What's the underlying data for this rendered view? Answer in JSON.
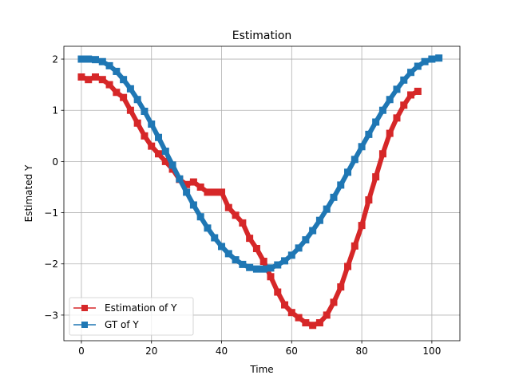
{
  "chart_data": {
    "type": "line",
    "title": "Estimation",
    "xlabel": "Time",
    "ylabel": "Estimated Y",
    "xlim": [
      -5,
      108
    ],
    "ylim": [
      -3.5,
      2.25
    ],
    "xticks": [
      0,
      20,
      40,
      60,
      80,
      100
    ],
    "yticks": [
      -3,
      -2,
      -1,
      0,
      1,
      2
    ],
    "xtick_labels": [
      "0",
      "20",
      "40",
      "60",
      "80",
      "100"
    ],
    "ytick_labels": [
      "−3",
      "−2",
      "−1",
      "0",
      "1",
      "2"
    ],
    "grid": true,
    "legend_position": "lower-left",
    "series": [
      {
        "name": "Estimation of Y",
        "color": "#d62728",
        "marker": "square",
        "x": [
          0,
          2,
          4,
          6,
          8,
          10,
          12,
          14,
          16,
          18,
          20,
          22,
          24,
          26,
          28,
          30,
          32,
          34,
          36,
          38,
          40,
          42,
          44,
          46,
          48,
          50,
          52,
          54,
          56,
          58,
          60,
          62,
          64,
          66,
          68,
          70,
          72,
          74,
          76,
          78,
          80,
          82,
          84,
          86,
          88,
          90,
          92,
          94,
          96
        ],
        "y": [
          1.65,
          1.6,
          1.65,
          1.6,
          1.5,
          1.35,
          1.25,
          1.0,
          0.75,
          0.5,
          0.3,
          0.15,
          0.0,
          -0.15,
          -0.35,
          -0.45,
          -0.4,
          -0.5,
          -0.6,
          -0.6,
          -0.6,
          -0.9,
          -1.05,
          -1.2,
          -1.5,
          -1.7,
          -1.95,
          -2.25,
          -2.55,
          -2.8,
          -2.95,
          -3.05,
          -3.15,
          -3.2,
          -3.15,
          -3.0,
          -2.75,
          -2.45,
          -2.05,
          -1.65,
          -1.25,
          -0.75,
          -0.3,
          0.15,
          0.55,
          0.85,
          1.1,
          1.3,
          1.37
        ]
      },
      {
        "name": "GT of Y",
        "color": "#1f77b4",
        "marker": "square",
        "x": [
          0,
          2,
          4,
          6,
          8,
          10,
          12,
          14,
          16,
          18,
          20,
          22,
          24,
          26,
          28,
          30,
          32,
          34,
          36,
          38,
          40,
          42,
          44,
          46,
          48,
          50,
          52,
          54,
          56,
          58,
          60,
          62,
          64,
          66,
          68,
          70,
          72,
          74,
          76,
          78,
          80,
          82,
          84,
          86,
          88,
          90,
          92,
          94,
          96,
          98,
          100,
          102
        ],
        "y": [
          2.0,
          2.0,
          1.99,
          1.95,
          1.87,
          1.76,
          1.6,
          1.42,
          1.21,
          0.98,
          0.73,
          0.47,
          0.2,
          -0.07,
          -0.34,
          -0.6,
          -0.85,
          -1.08,
          -1.3,
          -1.49,
          -1.66,
          -1.8,
          -1.92,
          -2.01,
          -2.07,
          -2.1,
          -2.1,
          -2.08,
          -2.02,
          -1.94,
          -1.83,
          -1.69,
          -1.53,
          -1.35,
          -1.15,
          -0.93,
          -0.7,
          -0.46,
          -0.21,
          0.04,
          0.29,
          0.53,
          0.77,
          1.0,
          1.21,
          1.41,
          1.59,
          1.74,
          1.86,
          1.95,
          2.0,
          2.02
        ]
      }
    ]
  }
}
